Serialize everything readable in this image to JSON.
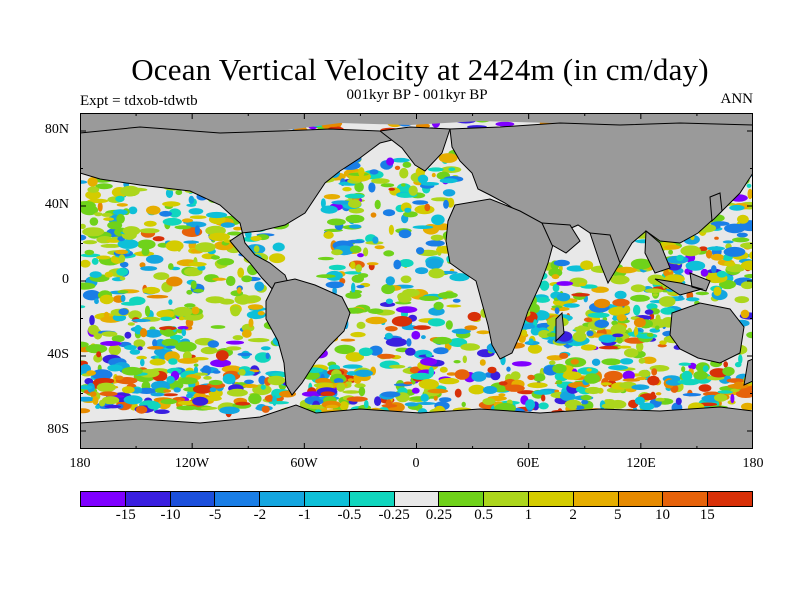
{
  "header": {
    "title": "Ocean Vertical Velocity at 2424m (in cm/day)",
    "subtitle": "001kyr BP - 001kyr BP",
    "left_label": "Expt = tdxob-tdwtb",
    "right_label": "ANN"
  },
  "axes": {
    "lat_ticks": [
      "80N",
      "40N",
      "0",
      "40S",
      "80S"
    ],
    "lon_ticks": [
      "180",
      "120W",
      "60W",
      "0",
      "60E",
      "120E",
      "180"
    ]
  },
  "colorbar": {
    "colors": [
      "#7f00ff",
      "#3a1fe0",
      "#1c50dc",
      "#1a7ee6",
      "#14a6e0",
      "#0ec0d8",
      "#10d6be",
      "#e8e8e8",
      "#6fd21a",
      "#acd61c",
      "#d4cc00",
      "#e6ae00",
      "#e68a00",
      "#e6620a",
      "#d83008"
    ],
    "labels": [
      "-15",
      "-10",
      "-5",
      "-2",
      "-1",
      "-0.5",
      "-0.25",
      "0.25",
      "0.5",
      "1",
      "2",
      "5",
      "10",
      "15"
    ]
  },
  "map_colors": {
    "land": "#9a9a9a",
    "neutral_ocean": "#e8e8e8",
    "coast": "#000000"
  }
}
